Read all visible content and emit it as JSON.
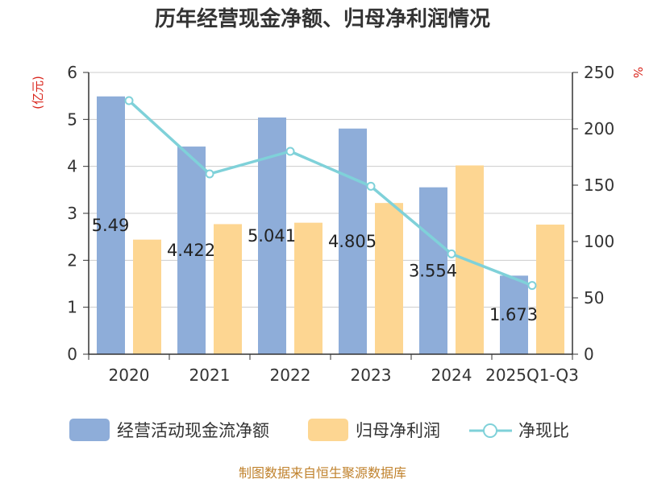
{
  "title": "历年经营现金净额、归母净利润情况",
  "left_unit": "(亿元)",
  "right_unit": "%",
  "source": "制图数据来自恒生聚源数据库",
  "colors": {
    "operating_cf": "#8eadd9",
    "net_profit": "#fdd692",
    "ratio": "#7fd1d9",
    "unit_red": "#d9251c",
    "source": "#c0822d",
    "grid": "#cccccc",
    "axis": "#333333"
  },
  "chart_data": {
    "type": "bar",
    "title": "历年经营现金净额、归母净利润情况",
    "categories": [
      "2020",
      "2021",
      "2022",
      "2023",
      "2024",
      "2025Q1-Q3"
    ],
    "y_left": {
      "label": "(亿元)",
      "ylim": [
        0,
        6
      ],
      "ticks": [
        "0",
        "1",
        "2",
        "3",
        "4",
        "5",
        "6"
      ]
    },
    "y_right": {
      "label": "%",
      "ylim": [
        0,
        250
      ],
      "ticks": [
        "0",
        "50",
        "100",
        "150",
        "200",
        "250"
      ]
    },
    "series": [
      {
        "name": "经营活动现金流净额",
        "kind": "bar",
        "axis": "left",
        "values": [
          5.49,
          4.422,
          5.041,
          4.805,
          3.554,
          1.673
        ],
        "labels": [
          "5.49",
          "4.422",
          "5.041",
          "4.805",
          "3.554",
          "1.673"
        ]
      },
      {
        "name": "归母净利润",
        "kind": "bar",
        "axis": "left",
        "values": [
          2.44,
          2.77,
          2.8,
          3.22,
          4.02,
          2.76
        ]
      },
      {
        "name": "净现比",
        "kind": "line",
        "axis": "right",
        "values": [
          225,
          160,
          180,
          149,
          89,
          61
        ]
      }
    ],
    "legend": [
      "经营活动现金流净额",
      "归母净利润",
      "净现比"
    ],
    "legend_position": "bottom",
    "grid": true
  }
}
